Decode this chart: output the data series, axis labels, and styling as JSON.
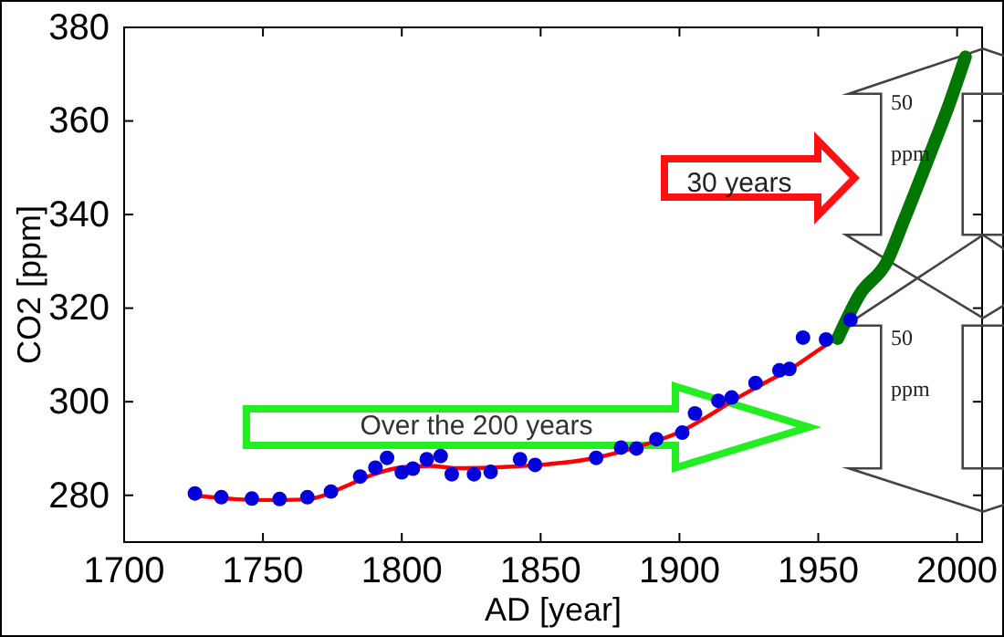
{
  "chart_data": {
    "type": "scatter",
    "xlabel": "AD [year]",
    "ylabel": "CO2  [ppm]",
    "xlim": [
      1700,
      2009
    ],
    "ylim": [
      270,
      380
    ],
    "xticks": [
      1700,
      1750,
      1800,
      1850,
      1900,
      1950,
      2000
    ],
    "yticks": [
      280,
      300,
      320,
      340,
      360,
      380
    ],
    "grid": false,
    "series": [
      {
        "color": "#0000dd",
        "marker": "circle",
        "x": [
          1725.5,
          1735,
          1746,
          1756,
          1766,
          1774.5,
          1785,
          1790.5,
          1794.7,
          1800,
          1804,
          1809,
          1814,
          1818,
          1826,
          1832,
          1842.6,
          1848,
          1870,
          1879,
          1884.5,
          1891.7,
          1901,
          1905.6,
          1914,
          1918.8,
          1927.4,
          1936,
          1939.6,
          1944.5,
          1952.8,
          1961.6
        ],
        "values": [
          280.4,
          279.6,
          279.3,
          279.2,
          279.6,
          280.8,
          284,
          285.9,
          288,
          284.9,
          285.7,
          287.7,
          288.4,
          284.5,
          284.5,
          285,
          287.7,
          286.5,
          288,
          290.2,
          290,
          292,
          293.4,
          297.5,
          300.2,
          300.9,
          304,
          306.7,
          307,
          313.7,
          313.3,
          317.5
        ]
      },
      {
        "type": "line",
        "color": "#ff0000",
        "line_style": "solid",
        "marker": "none",
        "x": [
          1725,
          1740,
          1750,
          1765,
          1772,
          1780,
          1790,
          1800,
          1810,
          1820,
          1835,
          1850,
          1865,
          1880,
          1890,
          1900,
          1910,
          1920,
          1930,
          1940,
          1950,
          1955
        ],
        "values": [
          280,
          279.2,
          279,
          279.1,
          280,
          282,
          284.5,
          286,
          286.3,
          285.8,
          286,
          286.5,
          287.5,
          289.5,
          291.3,
          293.5,
          296.8,
          300.5,
          303.8,
          307,
          311,
          313
        ]
      },
      {
        "type": "line",
        "color": "#007700",
        "line_style": "solid",
        "marker": "none",
        "x": [
          1957,
          1965,
          1974.6,
          1981,
          1990.3,
          1997.4,
          2003
        ],
        "values": [
          313.5,
          323,
          329.8,
          339,
          353,
          364,
          373.7
        ]
      }
    ],
    "annotations": [
      "Over the 200 years",
      "30 years",
      "50 ppm",
      "50 ppm"
    ]
  }
}
